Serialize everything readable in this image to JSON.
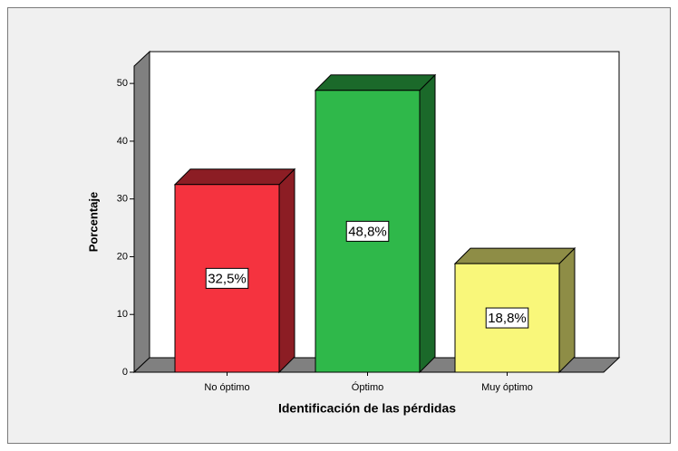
{
  "chart_data": {
    "type": "bar3d",
    "xlabel": "Identificación de las pérdidas",
    "ylabel": "Porcentaje",
    "categories": [
      "No óptimo",
      "Óptimo",
      "Muy óptimo"
    ],
    "values": [
      32.5,
      48.8,
      18.8
    ],
    "value_labels": [
      "32,5%",
      "48,8%",
      "18,8%"
    ],
    "colors": [
      "#f5333f",
      "#2fb84a",
      "#f9f77a"
    ],
    "ylim": [
      0,
      53
    ],
    "yticks": [
      0,
      10,
      20,
      30,
      40,
      50
    ]
  }
}
